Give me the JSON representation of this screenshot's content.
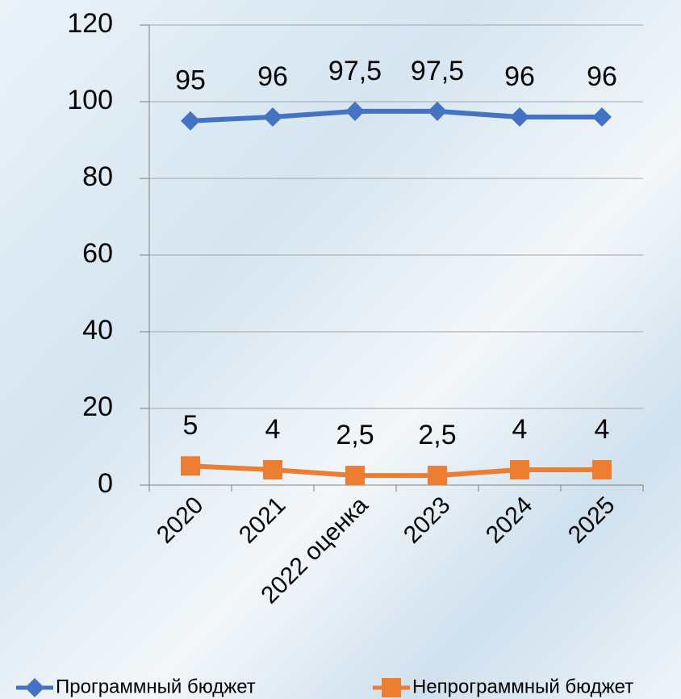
{
  "chart_data": {
    "type": "line",
    "categories": [
      "2020",
      "2021",
      "2022 оценка",
      "2023",
      "2024",
      "2025"
    ],
    "series": [
      {
        "name": "Программный бюджет",
        "color": "#4472c4",
        "marker": "diamond",
        "values": [
          95,
          96,
          97.5,
          97.5,
          96,
          96
        ],
        "value_labels": [
          "95",
          "96",
          "97,5",
          "97,5",
          "96",
          "96"
        ]
      },
      {
        "name": "Непрограммный бюджет",
        "color": "#ed7d31",
        "marker": "square",
        "values": [
          5,
          4,
          2.5,
          2.5,
          4,
          4
        ],
        "value_labels": [
          "5",
          "4",
          "2,5",
          "2,5",
          "4",
          "4"
        ]
      }
    ],
    "ylim": [
      0,
      120
    ],
    "yticks": [
      0,
      20,
      40,
      60,
      80,
      100,
      120
    ],
    "grid": true,
    "legend": "bottom"
  }
}
